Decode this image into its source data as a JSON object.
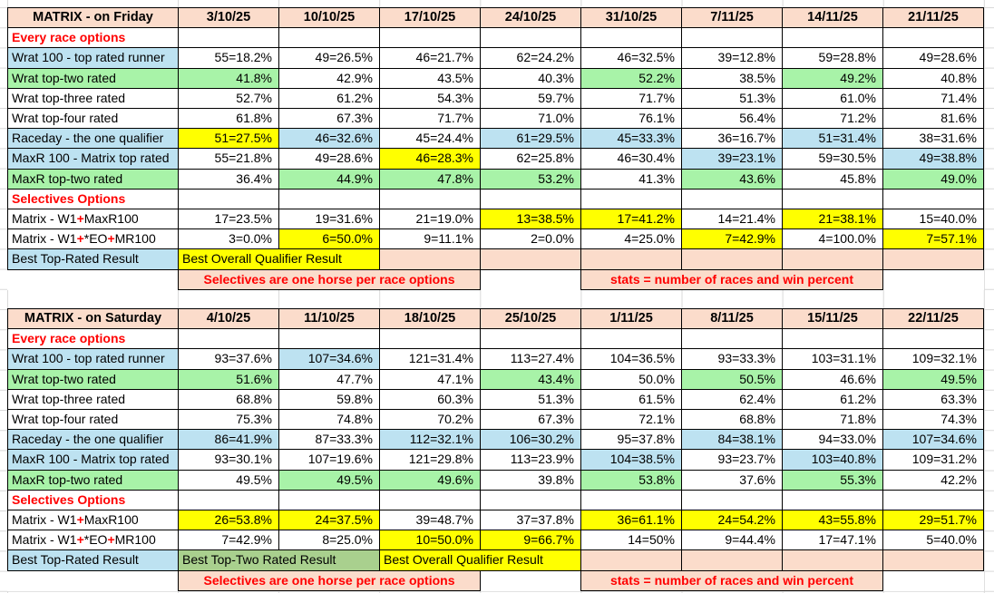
{
  "colors": {
    "header_peach": "#FBDCCB",
    "highlight_blue": "#BDE2F1",
    "highlight_green": "#A8F3A8",
    "best_green": "#A9D08E",
    "highlight_yellow": "#FFFF00",
    "accent_red": "#FF0000",
    "gridline_gray": "#D9D9D9"
  },
  "notes": {
    "selectives": "Selectives are one horse per race options",
    "stats": "stats = number of races and win percent"
  },
  "tables": [
    {
      "title": "MATRIX - on Friday",
      "dates": [
        "3/10/25",
        "10/10/25",
        "17/10/25",
        "24/10/25",
        "31/10/25",
        "7/11/25",
        "14/11/25",
        "21/11/25"
      ],
      "sections": [
        {
          "heading": "Every race options",
          "rows": [
            {
              "label": "Wrat 100 - top rated runner",
              "label_bg": "b",
              "values": [
                "55=18.2%",
                "49=26.5%",
                "46=21.7%",
                "62=24.2%",
                "46=32.5%",
                "39=12.8%",
                "59=28.8%",
                "49=28.6%"
              ],
              "bgs": [
                "w",
                "w",
                "w",
                "w",
                "w",
                "w",
                "w",
                "w"
              ]
            },
            {
              "label": "Wrat top-two rated",
              "label_bg": "g",
              "values": [
                "41.8%",
                "42.9%",
                "43.5%",
                "40.3%",
                "52.2%",
                "38.5%",
                "49.2%",
                "40.8%"
              ],
              "bgs": [
                "g",
                "w",
                "w",
                "w",
                "g",
                "w",
                "g",
                "w"
              ]
            },
            {
              "label": "Wrat top-three rated",
              "label_bg": "w",
              "values": [
                "52.7%",
                "61.2%",
                "54.3%",
                "59.7%",
                "71.7%",
                "51.3%",
                "61.0%",
                "71.4%"
              ],
              "bgs": [
                "w",
                "w",
                "w",
                "w",
                "w",
                "w",
                "w",
                "w"
              ]
            },
            {
              "label": "Wrat top-four rated",
              "label_bg": "w",
              "values": [
                "61.8%",
                "67.3%",
                "71.7%",
                "71.0%",
                "76.1%",
                "56.4%",
                "71.2%",
                "81.6%"
              ],
              "bgs": [
                "w",
                "w",
                "w",
                "w",
                "w",
                "w",
                "w",
                "w"
              ]
            },
            {
              "label": "Raceday - the one qualifier",
              "label_bg": "b",
              "values": [
                "51=27.5%",
                "46=32.6%",
                "45=24.4%",
                "61=29.5%",
                "45=33.3%",
                "36=16.7%",
                "51=31.4%",
                "38=31.6%"
              ],
              "bgs": [
                "y",
                "b",
                "w",
                "b",
                "b",
                "w",
                "b",
                "w"
              ]
            },
            {
              "label": "MaxR 100 - Matrix top rated",
              "label_bg": "b",
              "values": [
                "55=21.8%",
                "49=28.6%",
                "46=28.3%",
                "62=25.8%",
                "46=30.4%",
                "39=23.1%",
                "59=30.5%",
                "49=38.8%"
              ],
              "bgs": [
                "w",
                "w",
                "y",
                "w",
                "w",
                "b",
                "w",
                "b"
              ]
            },
            {
              "label": "MaxR top-two rated",
              "label_bg": "g",
              "values": [
                "36.4%",
                "44.9%",
                "47.8%",
                "53.2%",
                "41.3%",
                "43.6%",
                "45.8%",
                "49.0%"
              ],
              "bgs": [
                "w",
                "g",
                "g",
                "g",
                "w",
                "g",
                "w",
                "g"
              ]
            }
          ]
        },
        {
          "heading": "Selectives Options",
          "rows": [
            {
              "label_parts": [
                {
                  "t": "Matrix - W1"
                },
                {
                  "t": "+",
                  "red": true
                },
                {
                  "t": "MaxR100"
                }
              ],
              "label_bg": "w",
              "values": [
                "17=23.5%",
                "19=31.6%",
                "21=19.0%",
                "13=38.5%",
                "17=41.2%",
                "14=21.4%",
                "21=38.1%",
                "15=40.0%"
              ],
              "bgs": [
                "w",
                "w",
                "w",
                "y",
                "y",
                "w",
                "y",
                "w"
              ]
            },
            {
              "label_parts": [
                {
                  "t": "Matrix - W1"
                },
                {
                  "t": "+",
                  "red": true
                },
                {
                  "t": "*EO"
                },
                {
                  "t": "+",
                  "red": true
                },
                {
                  "t": "MR100"
                }
              ],
              "label_bg": "w",
              "values": [
                "3=0.0%",
                "6=50.0%",
                "9=11.1%",
                "2=0.0%",
                "4=25.0%",
                "7=42.9%",
                "4=100.0%",
                "7=57.1%"
              ],
              "bgs": [
                "w",
                "y",
                "w",
                "w",
                "w",
                "y",
                "w",
                "y"
              ]
            }
          ]
        }
      ],
      "best_row": {
        "label": "Best Top-Rated Result",
        "label_bg": "b",
        "spans": [
          {
            "t": "Best Overall Qualifier Result",
            "bg": "y",
            "cols": 2
          },
          {
            "t": "",
            "bg": "p",
            "cols": 1
          },
          {
            "t": "",
            "bg": "p",
            "cols": 1
          },
          {
            "t": "",
            "bg": "p",
            "cols": 1
          },
          {
            "t": "",
            "bg": "p",
            "cols": 1
          },
          {
            "t": "",
            "bg": "p",
            "cols": 1
          },
          {
            "t": "",
            "bg": "p",
            "cols": 1
          }
        ]
      }
    },
    {
      "title": "MATRIX - on Saturday",
      "dates": [
        "4/10/25",
        "11/10/25",
        "18/10/25",
        "25/10/25",
        "1/11/25",
        "8/11/25",
        "15/11/25",
        "22/11/25"
      ],
      "sections": [
        {
          "heading": "Every race options",
          "rows": [
            {
              "label": "Wrat 100 - top rated runner",
              "label_bg": "b",
              "values": [
                "93=37.6%",
                "107=34.6%",
                "121=31.4%",
                "113=27.4%",
                "104=36.5%",
                "93=33.3%",
                "103=31.1%",
                "109=32.1%"
              ],
              "bgs": [
                "w",
                "b",
                "w",
                "w",
                "w",
                "w",
                "w",
                "w"
              ]
            },
            {
              "label": "Wrat top-two rated",
              "label_bg": "g",
              "values": [
                "51.6%",
                "47.7%",
                "47.1%",
                "43.4%",
                "50.0%",
                "50.5%",
                "46.6%",
                "49.5%"
              ],
              "bgs": [
                "g",
                "w",
                "w",
                "g",
                "w",
                "g",
                "w",
                "g"
              ]
            },
            {
              "label": "Wrat top-three rated",
              "label_bg": "w",
              "values": [
                "68.8%",
                "59.8%",
                "60.3%",
                "51.3%",
                "61.5%",
                "62.4%",
                "61.2%",
                "63.3%"
              ],
              "bgs": [
                "w",
                "w",
                "w",
                "w",
                "w",
                "w",
                "w",
                "w"
              ]
            },
            {
              "label": "Wrat top-four rated",
              "label_bg": "w",
              "values": [
                "75.3%",
                "74.8%",
                "70.2%",
                "67.3%",
                "72.1%",
                "68.8%",
                "71.8%",
                "74.3%"
              ],
              "bgs": [
                "w",
                "w",
                "w",
                "w",
                "w",
                "w",
                "w",
                "w"
              ]
            },
            {
              "label": "Raceday - the one qualifier",
              "label_bg": "b",
              "values": [
                "86=41.9%",
                "87=33.3%",
                "112=32.1%",
                "106=30.2%",
                "95=37.8%",
                "84=38.1%",
                "94=33.0%",
                "107=34.6%"
              ],
              "bgs": [
                "b",
                "w",
                "b",
                "b",
                "w",
                "b",
                "w",
                "b"
              ]
            },
            {
              "label": "MaxR 100 - Matrix top rated",
              "label_bg": "b",
              "values": [
                "93=30.1%",
                "107=19.6%",
                "121=29.8%",
                "113=23.9%",
                "104=38.5%",
                "93=23.7%",
                "103=40.8%",
                "109=31.2%"
              ],
              "bgs": [
                "w",
                "w",
                "w",
                "w",
                "b",
                "w",
                "b",
                "w"
              ]
            },
            {
              "label": "MaxR top-two rated",
              "label_bg": "g",
              "values": [
                "49.5%",
                "49.5%",
                "49.6%",
                "39.8%",
                "53.8%",
                "37.6%",
                "55.3%",
                "42.2%"
              ],
              "bgs": [
                "w",
                "g",
                "g",
                "w",
                "g",
                "w",
                "g",
                "w"
              ]
            }
          ]
        },
        {
          "heading": "Selectives Options",
          "rows": [
            {
              "label_parts": [
                {
                  "t": "Matrix - W1"
                },
                {
                  "t": "+",
                  "red": true
                },
                {
                  "t": "MaxR100"
                }
              ],
              "label_bg": "w",
              "values": [
                "26=53.8%",
                "24=37.5%",
                "39=48.7%",
                "37=37.8%",
                "36=61.1%",
                "24=54.2%",
                "43=55.8%",
                "29=51.7%"
              ],
              "bgs": [
                "y",
                "y",
                "w",
                "w",
                "y",
                "y",
                "y",
                "y"
              ]
            },
            {
              "label_parts": [
                {
                  "t": "Matrix - W1"
                },
                {
                  "t": "+",
                  "red": true
                },
                {
                  "t": "*EO"
                },
                {
                  "t": "+",
                  "red": true
                },
                {
                  "t": "MR100"
                }
              ],
              "label_bg": "w",
              "values": [
                "7=42.9%",
                "8=25.0%",
                "10=50.0%",
                "9=66.7%",
                "14=50%",
                "9=44.4%",
                "17=47.1%",
                "5=40.0%"
              ],
              "bgs": [
                "w",
                "w",
                "y",
                "y",
                "w",
                "w",
                "w",
                "w"
              ]
            }
          ]
        }
      ],
      "best_row": {
        "label": "Best Top-Rated Result",
        "label_bg": "b",
        "spans": [
          {
            "t": "Best Top-Two Rated Result",
            "bg": "G",
            "cols": 2
          },
          {
            "t": "Best Overall Qualifier Result",
            "bg": "y",
            "cols": 2
          },
          {
            "t": "",
            "bg": "p",
            "cols": 1
          },
          {
            "t": "",
            "bg": "p",
            "cols": 1
          },
          {
            "t": "",
            "bg": "p",
            "cols": 1
          },
          {
            "t": "",
            "bg": "p",
            "cols": 1
          }
        ]
      }
    }
  ]
}
